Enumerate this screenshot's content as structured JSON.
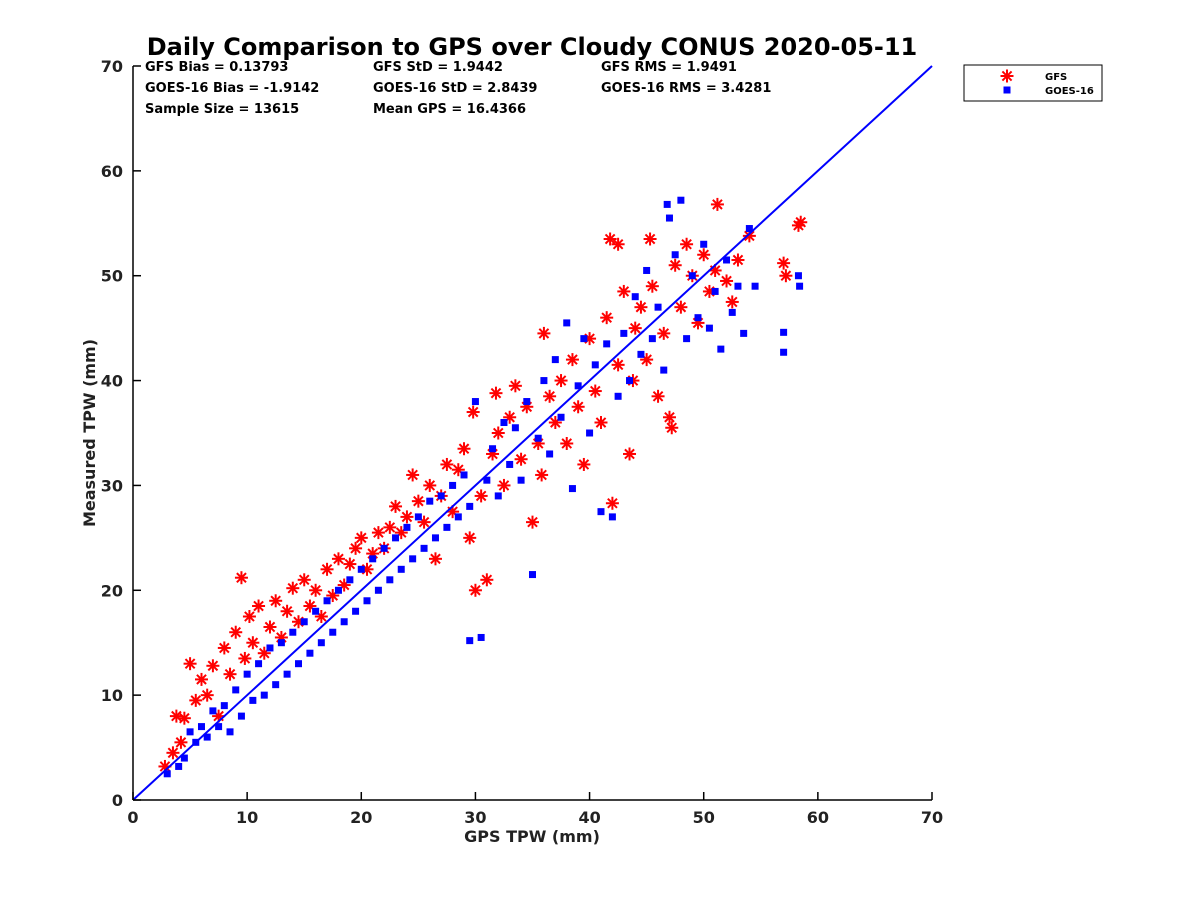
{
  "chart_data": {
    "type": "scatter",
    "title": "Daily Comparison to GPS over Cloudy CONUS 2020-05-11",
    "xlabel": "GPS TPW (mm)",
    "ylabel": "Measured TPW (mm)",
    "xlim": [
      0,
      70
    ],
    "ylim": [
      0,
      70
    ],
    "xticks": [
      0,
      10,
      20,
      30,
      40,
      50,
      60,
      70
    ],
    "yticks": [
      0,
      10,
      20,
      30,
      40,
      50,
      60,
      70
    ],
    "grid": false,
    "legend_placement": "outside-top-right",
    "stats": [
      [
        "GFS Bias = 0.13793",
        "GFS StD = 1.9442",
        "GFS RMS = 1.9491"
      ],
      [
        "GOES-16 Bias = -1.9142",
        "GOES-16 StD = 2.8439",
        "GOES-16 RMS = 3.4281"
      ],
      [
        "Sample Size = 13615",
        "Mean GPS = 16.4366",
        ""
      ]
    ],
    "reference_line": {
      "x": [
        0,
        70
      ],
      "y": [
        0,
        70
      ],
      "color": "#0000ff"
    },
    "series": [
      {
        "name": "GFS",
        "marker": "asterisk",
        "color": "#ff0000",
        "points": [
          [
            2.8,
            3.2
          ],
          [
            3.5,
            4.5
          ],
          [
            3.8,
            8.0
          ],
          [
            4.2,
            5.5
          ],
          [
            4.5,
            7.8
          ],
          [
            5.0,
            13.0
          ],
          [
            5.5,
            9.5
          ],
          [
            6.0,
            11.5
          ],
          [
            6.5,
            10.0
          ],
          [
            7.0,
            12.8
          ],
          [
            7.5,
            8.0
          ],
          [
            8.0,
            14.5
          ],
          [
            8.5,
            12.0
          ],
          [
            9.0,
            16.0
          ],
          [
            9.5,
            21.2
          ],
          [
            9.8,
            13.5
          ],
          [
            10.2,
            17.5
          ],
          [
            10.5,
            15.0
          ],
          [
            11.0,
            18.5
          ],
          [
            11.5,
            14.0
          ],
          [
            12.0,
            16.5
          ],
          [
            12.5,
            19.0
          ],
          [
            13.0,
            15.5
          ],
          [
            13.5,
            18.0
          ],
          [
            14.0,
            20.2
          ],
          [
            14.5,
            17.0
          ],
          [
            15.0,
            21.0
          ],
          [
            15.5,
            18.5
          ],
          [
            16.0,
            20.0
          ],
          [
            16.5,
            17.5
          ],
          [
            17.0,
            22.0
          ],
          [
            17.5,
            19.5
          ],
          [
            18.0,
            23.0
          ],
          [
            18.5,
            20.5
          ],
          [
            19.0,
            22.5
          ],
          [
            19.5,
            24.0
          ],
          [
            20.0,
            25.0
          ],
          [
            20.5,
            22.0
          ],
          [
            21.0,
            23.5
          ],
          [
            21.5,
            25.5
          ],
          [
            22.0,
            24.0
          ],
          [
            22.5,
            26.0
          ],
          [
            23.0,
            28.0
          ],
          [
            23.5,
            25.5
          ],
          [
            24.0,
            27.0
          ],
          [
            24.5,
            31.0
          ],
          [
            25.0,
            28.5
          ],
          [
            25.5,
            26.5
          ],
          [
            26.0,
            30.0
          ],
          [
            26.5,
            23.0
          ],
          [
            27.0,
            29.0
          ],
          [
            27.5,
            32.0
          ],
          [
            28.0,
            27.5
          ],
          [
            28.5,
            31.5
          ],
          [
            29.0,
            33.5
          ],
          [
            29.5,
            25.0
          ],
          [
            29.8,
            37.0
          ],
          [
            30.0,
            20.0
          ],
          [
            30.5,
            29.0
          ],
          [
            31.0,
            21.0
          ],
          [
            31.5,
            33.0
          ],
          [
            31.8,
            38.8
          ],
          [
            32.0,
            35.0
          ],
          [
            32.5,
            30.0
          ],
          [
            33.0,
            36.5
          ],
          [
            33.5,
            39.5
          ],
          [
            34.0,
            32.5
          ],
          [
            34.5,
            37.5
          ],
          [
            35.0,
            26.5
          ],
          [
            35.5,
            34.0
          ],
          [
            35.8,
            31.0
          ],
          [
            36.0,
            44.5
          ],
          [
            36.5,
            38.5
          ],
          [
            37.0,
            36.0
          ],
          [
            37.5,
            40.0
          ],
          [
            38.0,
            34.0
          ],
          [
            38.5,
            42.0
          ],
          [
            39.0,
            37.5
          ],
          [
            39.5,
            32.0
          ],
          [
            40.0,
            44.0
          ],
          [
            40.5,
            39.0
          ],
          [
            41.0,
            36.0
          ],
          [
            41.5,
            46.0
          ],
          [
            42.0,
            28.3
          ],
          [
            42.5,
            41.5
          ],
          [
            43.0,
            48.5
          ],
          [
            43.5,
            33.0
          ],
          [
            43.8,
            40.0
          ],
          [
            44.0,
            45.0
          ],
          [
            44.5,
            47.0
          ],
          [
            45.0,
            42.0
          ],
          [
            45.3,
            53.5
          ],
          [
            45.5,
            49.0
          ],
          [
            46.0,
            38.5
          ],
          [
            46.5,
            44.5
          ],
          [
            47.0,
            36.5
          ],
          [
            47.2,
            35.5
          ],
          [
            47.5,
            51.0
          ],
          [
            48.0,
            47.0
          ],
          [
            48.5,
            53.0
          ],
          [
            49.0,
            50.0
          ],
          [
            49.5,
            45.5
          ],
          [
            50.0,
            52.0
          ],
          [
            50.5,
            48.5
          ],
          [
            51.0,
            50.5
          ],
          [
            51.2,
            56.8
          ],
          [
            52.0,
            49.5
          ],
          [
            52.5,
            47.5
          ],
          [
            53.0,
            51.5
          ],
          [
            54.0,
            53.8
          ],
          [
            42.5,
            53.0
          ],
          [
            41.8,
            53.5
          ],
          [
            57.0,
            51.2
          ],
          [
            57.2,
            50.0
          ],
          [
            58.3,
            54.8
          ],
          [
            58.5,
            55.1
          ]
        ]
      },
      {
        "name": "GOES-16",
        "marker": "square",
        "color": "#0000ff",
        "points": [
          [
            3.0,
            2.5
          ],
          [
            4.0,
            3.2
          ],
          [
            4.5,
            4.0
          ],
          [
            5.0,
            6.5
          ],
          [
            5.5,
            5.5
          ],
          [
            6.0,
            7.0
          ],
          [
            6.5,
            6.0
          ],
          [
            7.0,
            8.5
          ],
          [
            7.5,
            7.0
          ],
          [
            8.0,
            9.0
          ],
          [
            8.5,
            6.5
          ],
          [
            9.0,
            10.5
          ],
          [
            9.5,
            8.0
          ],
          [
            10.0,
            12.0
          ],
          [
            10.5,
            9.5
          ],
          [
            11.0,
            13.0
          ],
          [
            11.5,
            10.0
          ],
          [
            12.0,
            14.5
          ],
          [
            12.5,
            11.0
          ],
          [
            13.0,
            15.0
          ],
          [
            13.5,
            12.0
          ],
          [
            14.0,
            16.0
          ],
          [
            14.5,
            13.0
          ],
          [
            15.0,
            17.0
          ],
          [
            15.5,
            14.0
          ],
          [
            16.0,
            18.0
          ],
          [
            16.5,
            15.0
          ],
          [
            17.0,
            19.0
          ],
          [
            17.5,
            16.0
          ],
          [
            18.0,
            20.0
          ],
          [
            18.5,
            17.0
          ],
          [
            19.0,
            21.0
          ],
          [
            19.5,
            18.0
          ],
          [
            20.0,
            22.0
          ],
          [
            20.5,
            19.0
          ],
          [
            21.0,
            23.0
          ],
          [
            21.5,
            20.0
          ],
          [
            22.0,
            24.0
          ],
          [
            22.5,
            21.0
          ],
          [
            23.0,
            25.0
          ],
          [
            23.5,
            22.0
          ],
          [
            24.0,
            26.0
          ],
          [
            24.5,
            23.0
          ],
          [
            25.0,
            27.0
          ],
          [
            25.5,
            24.0
          ],
          [
            26.0,
            28.5
          ],
          [
            26.5,
            25.0
          ],
          [
            27.0,
            29.0
          ],
          [
            27.5,
            26.0
          ],
          [
            28.0,
            30.0
          ],
          [
            28.5,
            27.0
          ],
          [
            29.0,
            31.0
          ],
          [
            29.5,
            28.0
          ],
          [
            30.0,
            38.0
          ],
          [
            30.5,
            15.5
          ],
          [
            29.5,
            15.2
          ],
          [
            31.0,
            30.5
          ],
          [
            31.5,
            33.5
          ],
          [
            32.0,
            29.0
          ],
          [
            32.5,
            36.0
          ],
          [
            33.0,
            32.0
          ],
          [
            33.5,
            35.5
          ],
          [
            34.0,
            30.5
          ],
          [
            34.5,
            38.0
          ],
          [
            35.0,
            21.5
          ],
          [
            35.5,
            34.5
          ],
          [
            36.0,
            40.0
          ],
          [
            36.5,
            33.0
          ],
          [
            37.0,
            42.0
          ],
          [
            37.5,
            36.5
          ],
          [
            38.0,
            45.5
          ],
          [
            38.5,
            29.7
          ],
          [
            39.0,
            39.5
          ],
          [
            39.5,
            44.0
          ],
          [
            40.0,
            35.0
          ],
          [
            40.5,
            41.5
          ],
          [
            41.0,
            27.5
          ],
          [
            41.5,
            43.5
          ],
          [
            42.0,
            27.0
          ],
          [
            42.5,
            38.5
          ],
          [
            43.0,
            44.5
          ],
          [
            43.5,
            40.0
          ],
          [
            44.0,
            48.0
          ],
          [
            44.5,
            42.5
          ],
          [
            45.0,
            50.5
          ],
          [
            45.5,
            44.0
          ],
          [
            46.0,
            47.0
          ],
          [
            46.5,
            41.0
          ],
          [
            46.8,
            56.8
          ],
          [
            47.0,
            55.5
          ],
          [
            47.5,
            52.0
          ],
          [
            48.0,
            57.2
          ],
          [
            48.5,
            44.0
          ],
          [
            49.0,
            50.0
          ],
          [
            49.5,
            46.0
          ],
          [
            50.0,
            53.0
          ],
          [
            50.5,
            45.0
          ],
          [
            51.0,
            48.5
          ],
          [
            51.5,
            43.0
          ],
          [
            52.0,
            51.5
          ],
          [
            52.5,
            46.5
          ],
          [
            53.0,
            49.0
          ],
          [
            53.5,
            44.5
          ],
          [
            54.0,
            54.5
          ],
          [
            54.5,
            49.0
          ],
          [
            57.0,
            44.6
          ],
          [
            57.0,
            42.7
          ],
          [
            58.3,
            50.0
          ],
          [
            58.4,
            49.0
          ]
        ]
      }
    ]
  }
}
